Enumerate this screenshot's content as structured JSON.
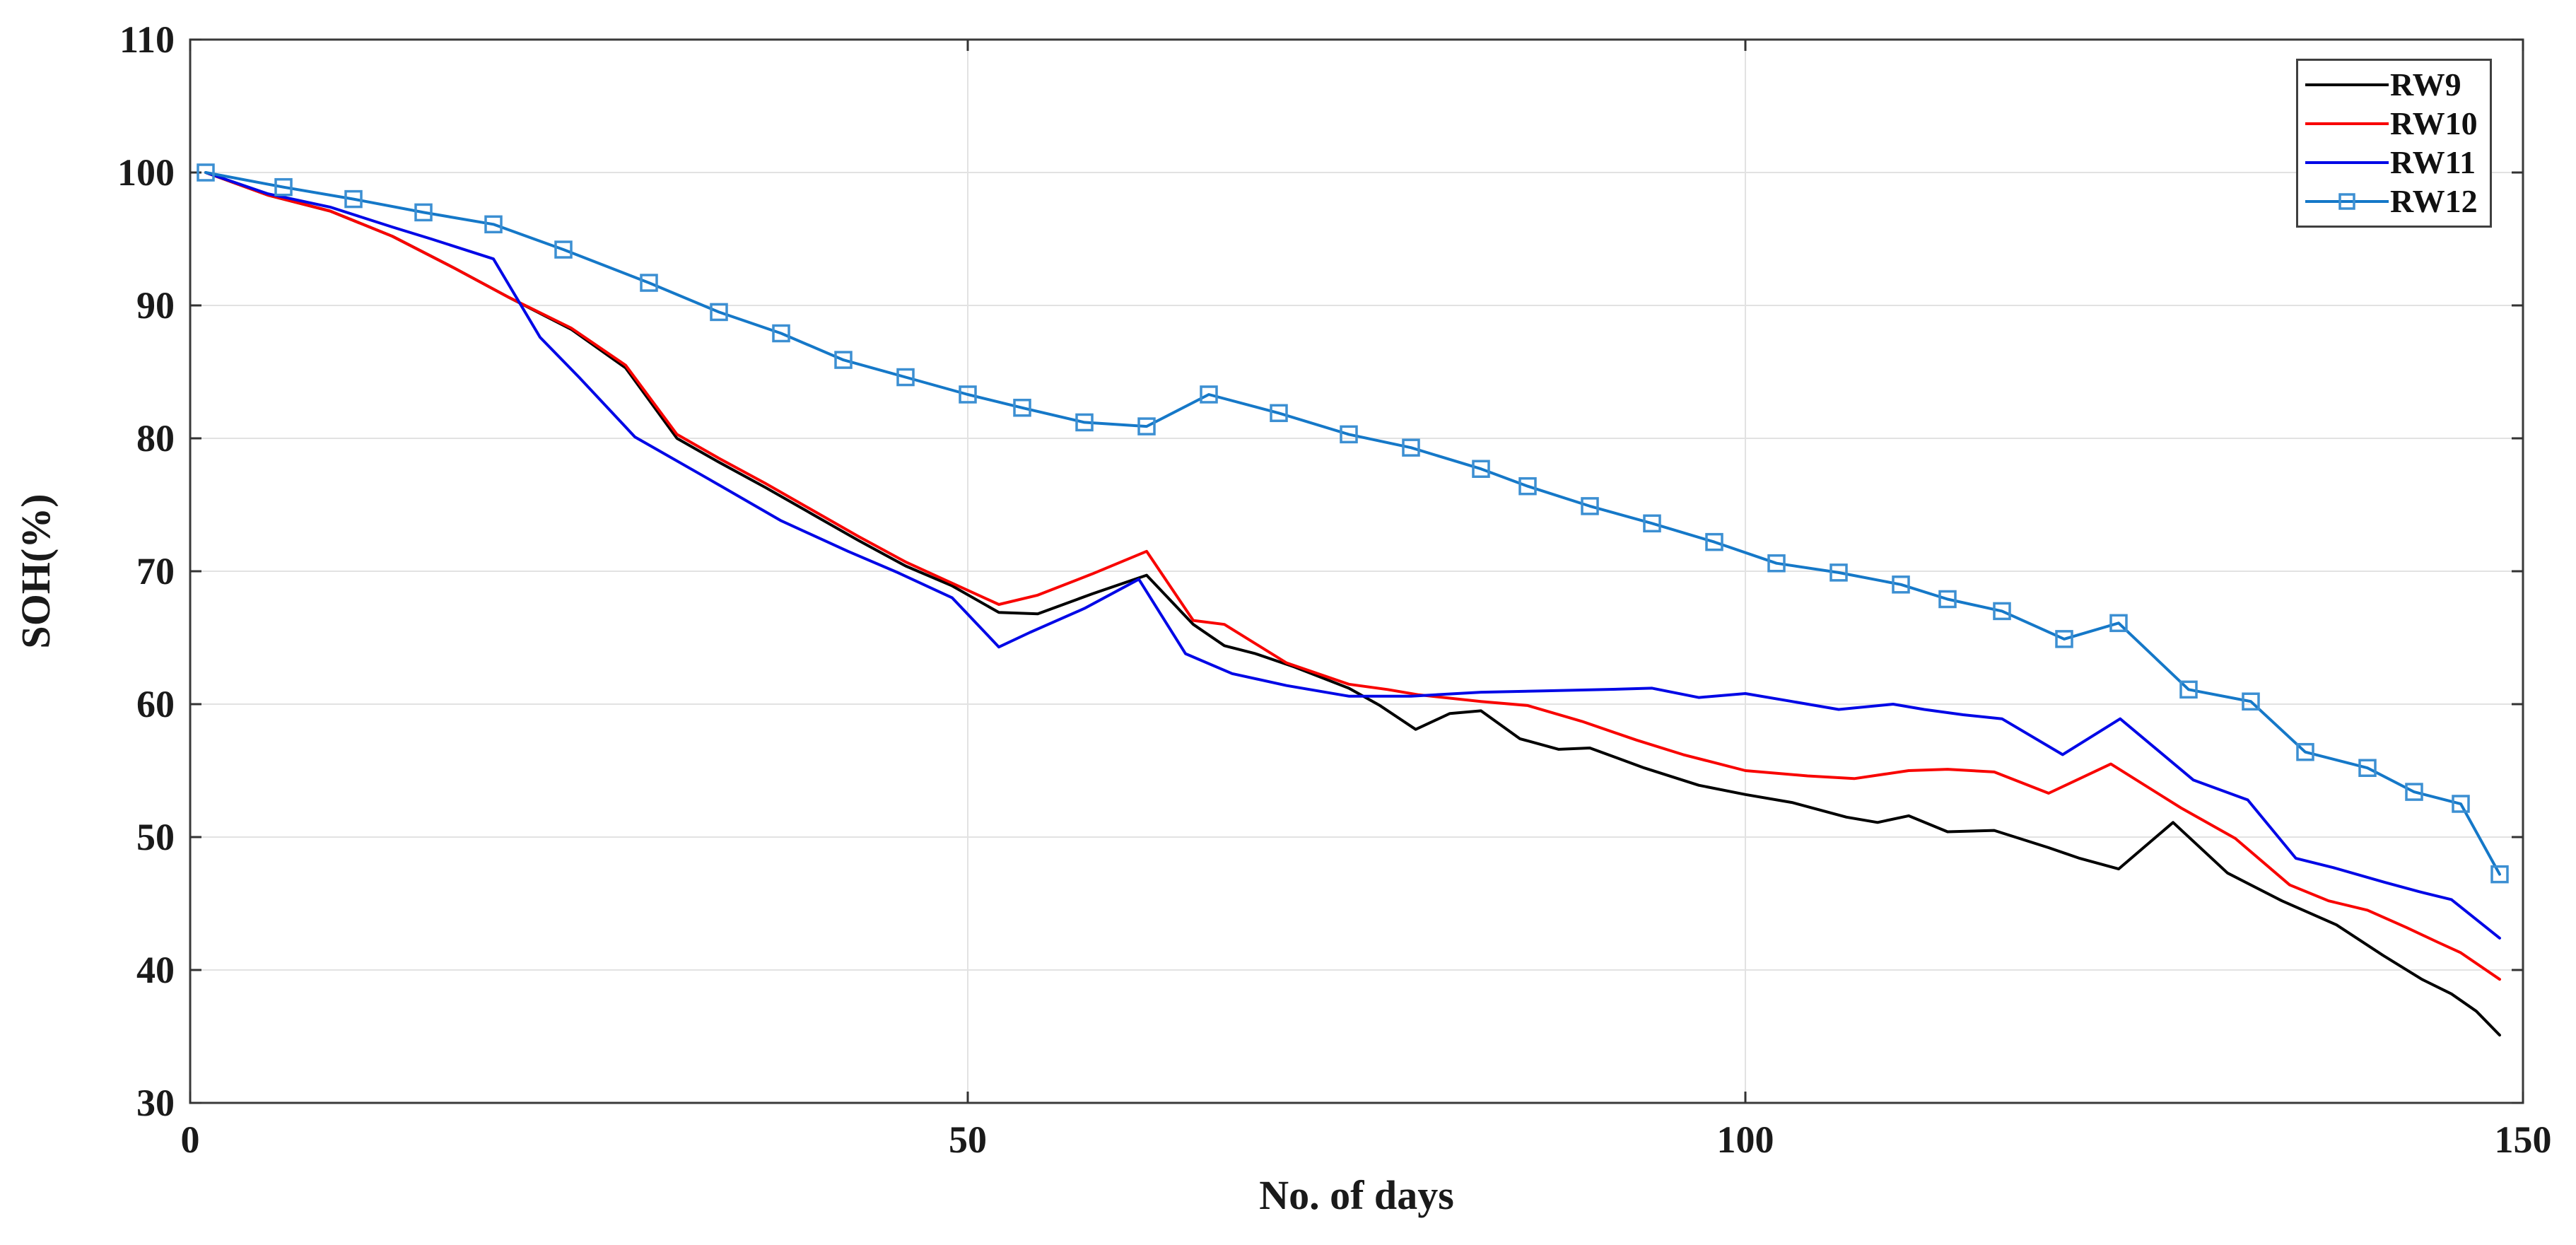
{
  "chart_data": {
    "type": "line",
    "title": "",
    "xlabel": "No. of days",
    "ylabel": "SOH(%)",
    "xlim": [
      0,
      150
    ],
    "ylim": [
      30,
      110
    ],
    "xticks": [
      0,
      50,
      100,
      150
    ],
    "xtick_labels": [
      "0",
      "50",
      "100",
      "150"
    ],
    "yticks": [
      30,
      40,
      50,
      60,
      70,
      80,
      90,
      100,
      110
    ],
    "ytick_labels": [
      "30",
      "40",
      "50",
      "60",
      "70",
      "80",
      "90",
      "100",
      "110"
    ],
    "grid": true,
    "legend_position": "top-right",
    "series": [
      {
        "name": "RW9",
        "color": "#000000",
        "line_width": 4,
        "marker": "none",
        "x": [
          1,
          5,
          9,
          13,
          17,
          20.5,
          24.5,
          28,
          31.3,
          34,
          37,
          40,
          43,
          46,
          49,
          52,
          54.5,
          58,
          61.5,
          64.5,
          66.5,
          68.5,
          71,
          74.5,
          76.5,
          78.8,
          81,
          83,
          85.5,
          88,
          90,
          93.5,
          97,
          100,
          103,
          106.5,
          108.5,
          110.5,
          113,
          116,
          119.5,
          121.5,
          124,
          127.5,
          131,
          134.5,
          138,
          141,
          143.5,
          145.4,
          147,
          148.5
        ],
        "y": [
          100,
          98.3,
          97.1,
          95.2,
          92.8,
          90.6,
          88.2,
          85.3,
          80.0,
          78.2,
          76.3,
          74.3,
          72.3,
          70.4,
          68.9,
          66.9,
          66.8,
          68.3,
          69.7,
          66.0,
          64.4,
          63.8,
          62.8,
          61.2,
          59.9,
          58.1,
          59.3,
          59.5,
          57.4,
          56.6,
          56.7,
          55.2,
          53.9,
          53.2,
          52.6,
          51.5,
          51.1,
          51.6,
          50.4,
          50.5,
          49.2,
          48.4,
          47.6,
          51.1,
          47.3,
          45.2,
          43.4,
          41.1,
          39.3,
          38.2,
          36.9,
          35.1
        ]
      },
      {
        "name": "RW10",
        "color": "#f80400",
        "line_width": 4,
        "marker": "none",
        "x": [
          1,
          5,
          9,
          13,
          17,
          20.5,
          24.5,
          28,
          31.3,
          34,
          37,
          40,
          43,
          46,
          49,
          52,
          54.5,
          58,
          61.5,
          64.5,
          66.5,
          70.5,
          74.5,
          77,
          79,
          83,
          86,
          89.5,
          93,
          96,
          100,
          104,
          107,
          110.5,
          113,
          116,
          119.5,
          123.5,
          128,
          131.5,
          135,
          137.5,
          140,
          142.5,
          144.5,
          146,
          148.5
        ],
        "y": [
          100,
          98.3,
          97.1,
          95.2,
          92.8,
          90.6,
          88.3,
          85.5,
          80.3,
          78.5,
          76.6,
          74.6,
          72.6,
          70.7,
          69.1,
          67.5,
          68.2,
          69.8,
          71.5,
          66.3,
          66.0,
          63.1,
          61.5,
          61.1,
          60.7,
          60.2,
          59.9,
          58.7,
          57.3,
          56.2,
          55.0,
          54.6,
          54.4,
          55.0,
          55.1,
          54.9,
          53.3,
          55.5,
          52.2,
          49.9,
          46.4,
          45.2,
          44.5,
          43.2,
          42.1,
          41.3,
          39.3
        ]
      },
      {
        "name": "RW11",
        "color": "#0008e6",
        "line_width": 4,
        "marker": "none",
        "x": [
          1,
          5,
          9,
          13,
          15.5,
          19.5,
          22.5,
          25,
          28.6,
          33.4,
          38,
          42.3,
          45.5,
          49,
          52,
          54,
          57.5,
          61,
          64,
          67,
          70.5,
          74.5,
          78.5,
          83,
          87,
          91,
          94,
          97,
          100,
          103,
          106,
          109.5,
          111.5,
          114,
          116.5,
          120.4,
          124.1,
          128.8,
          132.3,
          135.4,
          137.8,
          141.1,
          143.3,
          145.4,
          148.5
        ],
        "y": [
          100,
          98.4,
          97.4,
          95.9,
          95.0,
          93.5,
          87.6,
          84.6,
          80.1,
          76.9,
          73.8,
          71.5,
          69.9,
          68.0,
          64.3,
          65.4,
          67.2,
          69.4,
          63.8,
          62.3,
          61.4,
          60.6,
          60.6,
          60.9,
          61.0,
          61.1,
          61.2,
          60.5,
          60.8,
          60.2,
          59.6,
          60.0,
          59.6,
          59.2,
          58.9,
          56.2,
          58.9,
          54.3,
          52.8,
          48.4,
          47.7,
          46.6,
          45.9,
          45.3,
          42.4
        ]
      },
      {
        "name": "RW12",
        "color": "#1578c8",
        "marker_color": "#3c8fd2",
        "line_width": 4,
        "marker": "square",
        "marker_size": 22,
        "x": [
          1,
          6,
          10.5,
          15,
          19.5,
          24,
          29.5,
          34,
          38,
          42,
          46,
          50,
          53.5,
          57.5,
          61.5,
          65.5,
          70,
          74.5,
          78.5,
          83,
          86,
          90,
          94,
          98,
          102,
          106,
          110,
          113,
          116.5,
          120.5,
          124,
          128.5,
          132.5,
          136,
          140,
          143,
          146,
          148.5
        ],
        "y": [
          100,
          98.9,
          98.0,
          97.0,
          96.1,
          94.2,
          91.7,
          89.5,
          87.9,
          85.9,
          84.6,
          83.3,
          82.3,
          81.2,
          80.9,
          83.3,
          81.9,
          80.3,
          79.3,
          77.7,
          76.4,
          74.9,
          73.6,
          72.2,
          70.6,
          69.9,
          69.0,
          67.9,
          67.0,
          64.9,
          66.1,
          61.1,
          60.2,
          56.4,
          55.2,
          53.4,
          52.5,
          47.2
        ]
      }
    ],
    "style": {
      "grid_color": "#e2e2e2",
      "frame_color": "#3a3a3a",
      "tick_color": "#333333",
      "background": "#ffffff"
    }
  }
}
